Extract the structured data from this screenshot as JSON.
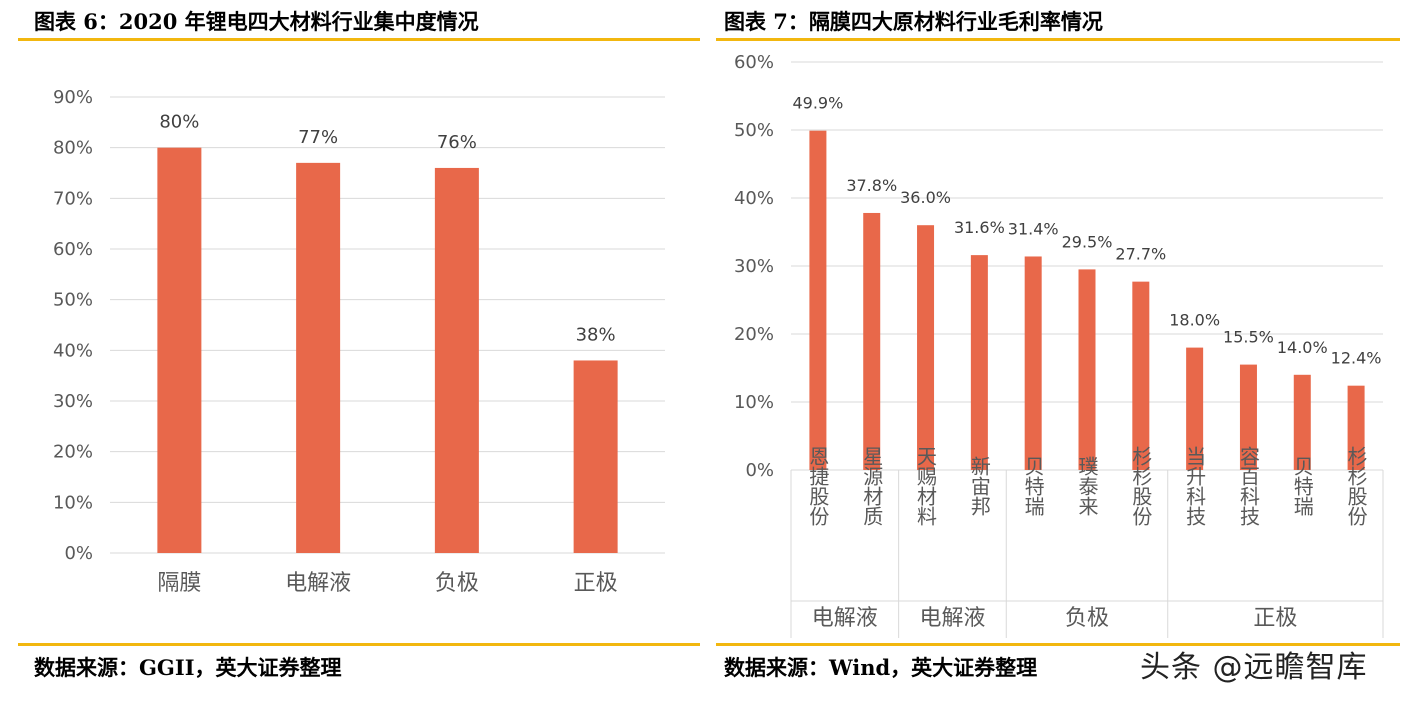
{
  "left": {
    "title": "图表 6：2020 年锂电四大材料行业集中度情况",
    "source": "数据来源：GGII，英大证券整理"
  },
  "right": {
    "title": "图表 7：隔膜四大原材料行业毛利率情况",
    "source": "数据来源：Wind，英大证券整理"
  },
  "watermark": "头条 @远瞻智库",
  "colors": {
    "bar": "#E8684A",
    "accent": "#F2B70F",
    "grid": "#D9D9D9"
  },
  "chart_data": [
    {
      "type": "bar",
      "categories": [
        "隔膜",
        "电解液",
        "负极",
        "正极"
      ],
      "values": [
        80,
        77,
        76,
        38
      ],
      "data_labels": [
        "80%",
        "77%",
        "76%",
        "38%"
      ],
      "ylim": [
        0,
        90
      ],
      "yticks": [
        "0%",
        "10%",
        "20%",
        "30%",
        "40%",
        "50%",
        "60%",
        "70%",
        "80%",
        "90%"
      ],
      "grid": true
    },
    {
      "type": "bar",
      "categories": [
        "恩捷股份",
        "星源材质",
        "天赐材料",
        "新宙邦",
        "贝特瑞",
        "璞泰来",
        "杉杉股份",
        "当升科技",
        "容百科技",
        "贝特瑞",
        "杉杉股份"
      ],
      "values": [
        49.9,
        37.8,
        36.0,
        31.6,
        31.4,
        29.5,
        27.7,
        18.0,
        15.5,
        14.0,
        12.4
      ],
      "data_labels": [
        "49.9%",
        "37.8%",
        "36.0%",
        "31.6%",
        "31.4%",
        "29.5%",
        "27.7%",
        "18.0%",
        "15.5%",
        "14.0%",
        "12.4%"
      ],
      "groups": [
        {
          "name": "电解液",
          "count": 2
        },
        {
          "name": "电解液",
          "count": 2
        },
        {
          "name": "负极",
          "count": 3
        },
        {
          "name": "正极",
          "count": 4
        }
      ],
      "ylim": [
        0,
        60
      ],
      "yticks": [
        "0%",
        "10%",
        "20%",
        "30%",
        "40%",
        "50%",
        "60%"
      ],
      "grid": true
    }
  ]
}
